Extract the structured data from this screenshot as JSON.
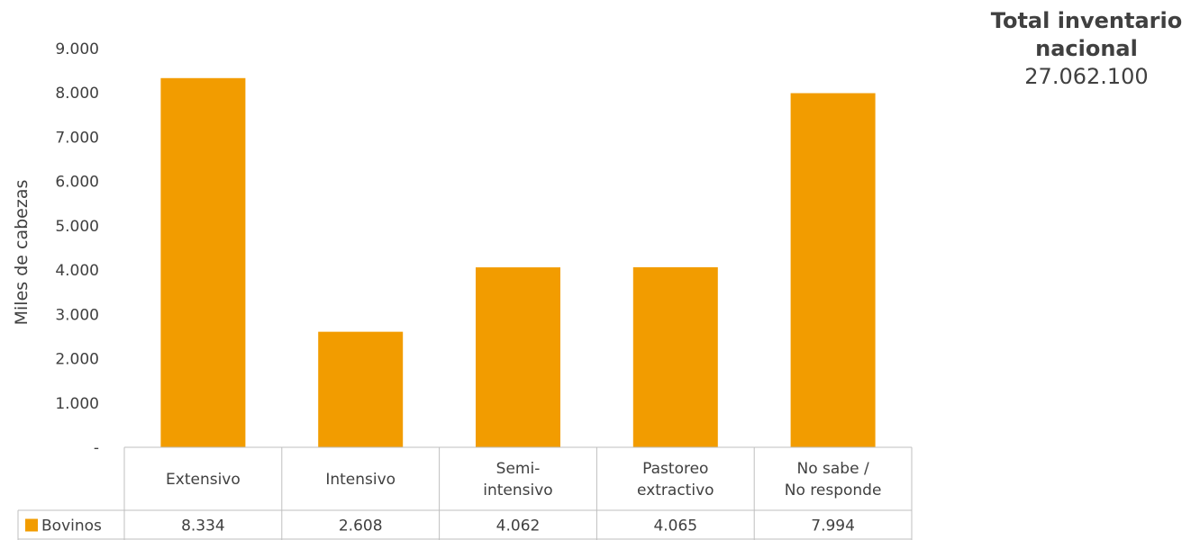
{
  "chart_data": {
    "type": "bar",
    "ylabel": "Miles de cabezas",
    "y_ticks": [
      "-",
      "1.000",
      "2.000",
      "3.000",
      "4.000",
      "5.000",
      "6.000",
      "7.000",
      "8.000",
      "9.000"
    ],
    "ylim": [
      0,
      9000
    ],
    "categories": [
      [
        "Extensivo"
      ],
      [
        "Intensivo"
      ],
      [
        "Semi-",
        "intensivo"
      ],
      [
        "Pastoreo",
        "extractivo"
      ],
      [
        "No sabe /",
        "No responde"
      ]
    ],
    "series": [
      {
        "name": "Bovinos",
        "color": "#f29c00",
        "values": [
          8334,
          2608,
          4062,
          4065,
          7994
        ],
        "labels": [
          "8.334",
          "2.608",
          "4.062",
          "4.065",
          "7.994"
        ]
      }
    ],
    "grid": false,
    "legend": "data-table-left"
  },
  "summary": {
    "title": "Total inventario nacional",
    "value": "27.062.100"
  }
}
